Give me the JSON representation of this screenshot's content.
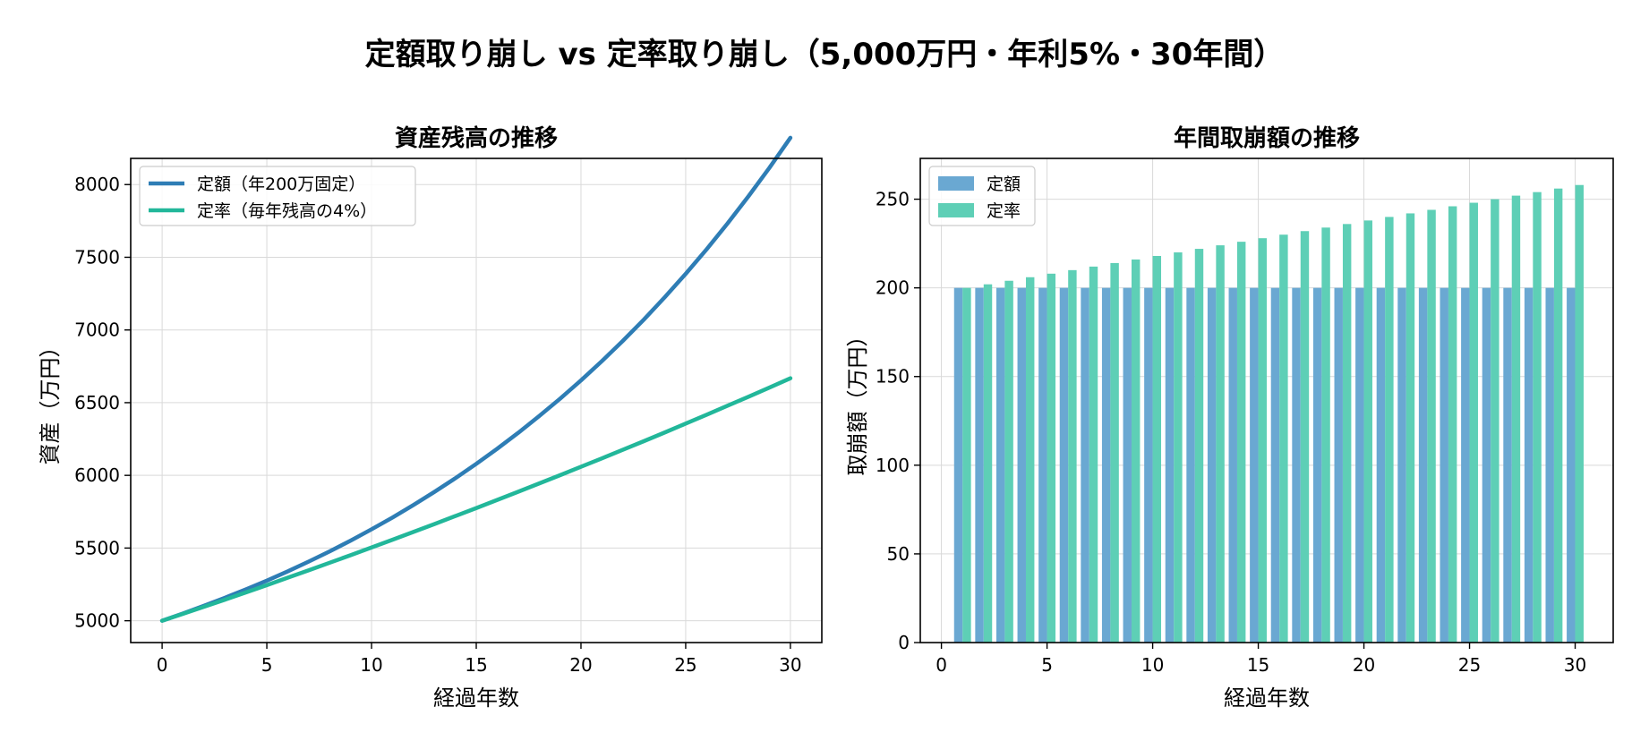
{
  "suptitle": "定額取り崩し vs 定率取り崩し（5,000万円・年利5%・30年間）",
  "colors": {
    "fixed_line": "#2e7db5",
    "rate_line": "#22b79a",
    "fixed_bar": "#6aa8d2",
    "rate_bar": "#5ecfb6"
  },
  "chart_data": [
    {
      "type": "line",
      "title": "資産残高の推移",
      "xlabel": "経過年数",
      "ylabel": "資産（万円）",
      "xlim": [
        -1.5,
        31.5
      ],
      "ylim": [
        4850,
        8180
      ],
      "xticks": [
        0,
        5,
        10,
        15,
        20,
        25,
        30
      ],
      "yticks": [
        5000,
        5500,
        6000,
        6500,
        7000,
        7500,
        8000
      ],
      "grid": true,
      "legend": "top-left",
      "x": [
        0,
        1,
        2,
        3,
        4,
        5,
        6,
        7,
        8,
        9,
        10,
        11,
        12,
        13,
        14,
        15,
        16,
        17,
        18,
        19,
        20,
        21,
        22,
        23,
        24,
        25,
        26,
        27,
        28,
        29,
        30
      ],
      "series": [
        {
          "name": "定額（年200万固定）",
          "color_key": "fixed_line",
          "values": [
            5000,
            5050,
            5103,
            5158,
            5216,
            5276,
            5340,
            5407,
            5477,
            5551,
            5629,
            5710,
            5796,
            5886,
            5980,
            6079,
            6183,
            6292,
            6407,
            6527,
            6653,
            6786,
            6925,
            7071,
            7225,
            7386,
            7555,
            7733,
            7920,
            8116,
            8322
          ]
        },
        {
          "name": "定率（毎年残高の4%）",
          "color_key": "rate_line",
          "values": [
            5000,
            5048,
            5096,
            5145,
            5195,
            5245,
            5296,
            5347,
            5399,
            5451,
            5504,
            5557,
            5611,
            5665,
            5720,
            5775,
            5831,
            5887,
            5944,
            6001,
            6059,
            6117,
            6176,
            6235,
            6295,
            6356,
            6417,
            6479,
            6541,
            6604,
            6668
          ]
        }
      ]
    },
    {
      "type": "bar",
      "title": "年間取崩額の推移",
      "xlabel": "経過年数",
      "ylabel": "取崩額（万円）",
      "xlim": [
        -1.0,
        31.8
      ],
      "ylim": [
        0,
        273
      ],
      "xticks": [
        0,
        5,
        10,
        15,
        20,
        25,
        30
      ],
      "yticks": [
        0,
        50,
        100,
        150,
        200,
        250
      ],
      "grid": true,
      "legend": "top-left",
      "categories": [
        1,
        2,
        3,
        4,
        5,
        6,
        7,
        8,
        9,
        10,
        11,
        12,
        13,
        14,
        15,
        16,
        17,
        18,
        19,
        20,
        21,
        22,
        23,
        24,
        25,
        26,
        27,
        28,
        29,
        30
      ],
      "series": [
        {
          "name": "定額",
          "color_key": "fixed_bar",
          "values": [
            200,
            200,
            200,
            200,
            200,
            200,
            200,
            200,
            200,
            200,
            200,
            200,
            200,
            200,
            200,
            200,
            200,
            200,
            200,
            200,
            200,
            200,
            200,
            200,
            200,
            200,
            200,
            200,
            200,
            200
          ]
        },
        {
          "name": "定率",
          "color_key": "rate_bar",
          "values": [
            200,
            202,
            204,
            206,
            208,
            210,
            212,
            214,
            216,
            218,
            220,
            222,
            224,
            226,
            228,
            230,
            232,
            234,
            236,
            238,
            240,
            242,
            244,
            246,
            248,
            250,
            252,
            254,
            256,
            258
          ]
        }
      ]
    }
  ]
}
